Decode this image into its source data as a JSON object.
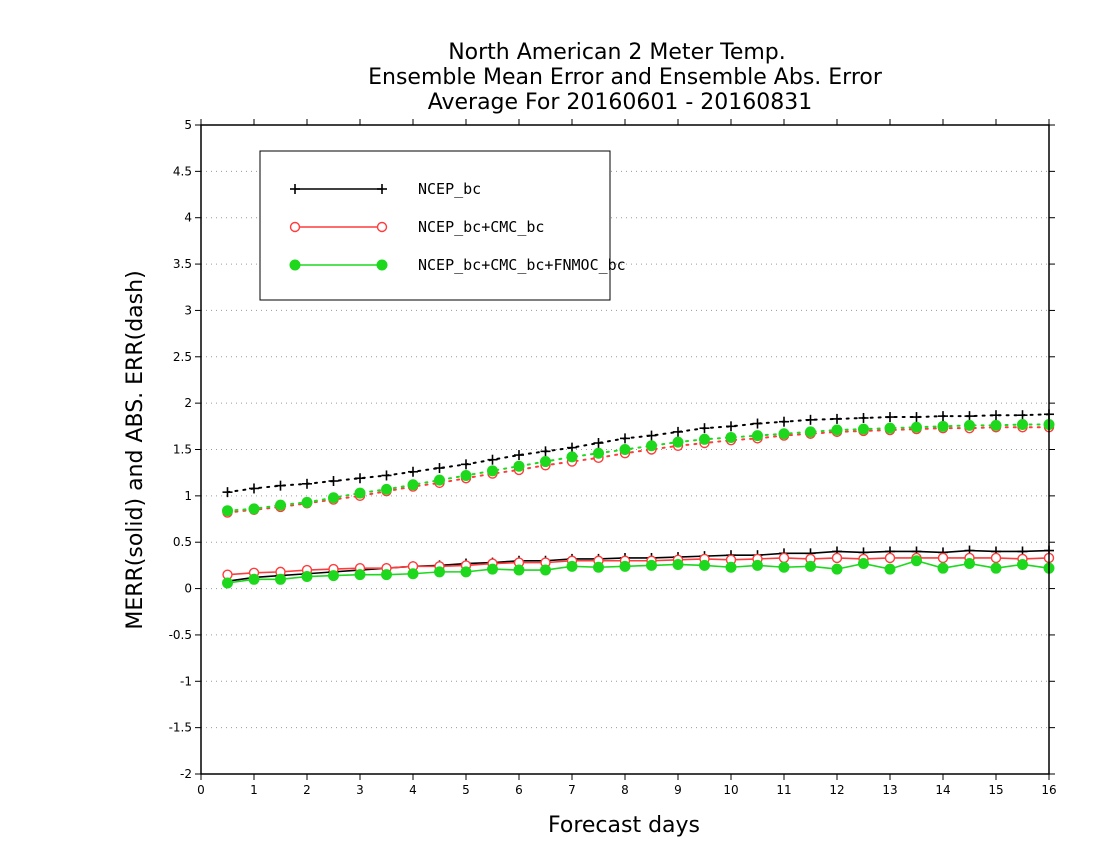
{
  "chart_data": {
    "type": "line",
    "title": [
      "North American 2 Meter Temp.",
      "Ensemble Mean Error and Ensemble Abs. Error",
      "Average For 20160601 - 20160831"
    ],
    "xlabel": "Forecast days",
    "ylabel": "MERR(solid) and ABS. ERR(dash)",
    "xlim": [
      0,
      16
    ],
    "ylim": [
      -2,
      5
    ],
    "xticks": [
      0,
      1,
      2,
      3,
      4,
      5,
      6,
      7,
      8,
      9,
      10,
      11,
      12,
      13,
      14,
      15,
      16
    ],
    "yticks": [
      -2,
      -1.5,
      -1,
      -0.5,
      0,
      0.5,
      1,
      1.5,
      2,
      2.5,
      3,
      3.5,
      4,
      4.5,
      5
    ],
    "ytick_labels": [
      "-2",
      "-1.5",
      "-1",
      "-0.5",
      "0",
      "0.5",
      "1",
      "1.5",
      "2",
      "2.5",
      "3",
      "3.5",
      "4",
      "4.5",
      "5"
    ],
    "grid": "horizontal dotted",
    "legend_position": "top-left",
    "x": [
      0.5,
      1,
      1.5,
      2,
      2.5,
      3,
      3.5,
      4,
      4.5,
      5,
      5.5,
      6,
      6.5,
      7,
      7.5,
      8,
      8.5,
      9,
      9.5,
      10,
      10.5,
      11,
      11.5,
      12,
      12.5,
      13,
      13.5,
      14,
      14.5,
      15,
      15.5,
      16
    ],
    "series": [
      {
        "name": "NCEP_bc",
        "color": "#000000",
        "marker": "plus",
        "solid": [
          0.08,
          0.12,
          0.14,
          0.16,
          0.18,
          0.2,
          0.22,
          0.24,
          0.25,
          0.27,
          0.28,
          0.3,
          0.3,
          0.32,
          0.32,
          0.33,
          0.33,
          0.34,
          0.35,
          0.36,
          0.36,
          0.38,
          0.38,
          0.4,
          0.39,
          0.4,
          0.4,
          0.39,
          0.41,
          0.4,
          0.4,
          0.41
        ],
        "dash": [
          1.04,
          1.08,
          1.11,
          1.13,
          1.16,
          1.19,
          1.22,
          1.26,
          1.3,
          1.34,
          1.39,
          1.44,
          1.48,
          1.52,
          1.57,
          1.62,
          1.65,
          1.69,
          1.73,
          1.75,
          1.78,
          1.8,
          1.82,
          1.83,
          1.84,
          1.85,
          1.85,
          1.86,
          1.86,
          1.87,
          1.87,
          1.88
        ]
      },
      {
        "name": "NCEP_bc+CMC_bc",
        "color": "#ff3b3b",
        "marker": "open-circle",
        "solid": [
          0.15,
          0.17,
          0.18,
          0.2,
          0.21,
          0.22,
          0.22,
          0.24,
          0.24,
          0.25,
          0.27,
          0.28,
          0.28,
          0.3,
          0.3,
          0.3,
          0.3,
          0.31,
          0.32,
          0.31,
          0.32,
          0.33,
          0.32,
          0.33,
          0.32,
          0.33,
          0.33,
          0.33,
          0.33,
          0.33,
          0.32,
          0.33
        ],
        "dash": [
          0.82,
          0.85,
          0.88,
          0.92,
          0.96,
          1.0,
          1.05,
          1.1,
          1.14,
          1.19,
          1.24,
          1.28,
          1.33,
          1.37,
          1.41,
          1.46,
          1.5,
          1.54,
          1.57,
          1.6,
          1.62,
          1.65,
          1.67,
          1.69,
          1.7,
          1.71,
          1.72,
          1.73,
          1.73,
          1.74,
          1.74,
          1.74
        ]
      },
      {
        "name": "NCEP_bc+CMC_bc+FNMOC_bc",
        "color": "#1ed81e",
        "marker": "filled-circle",
        "solid": [
          0.06,
          0.1,
          0.1,
          0.13,
          0.14,
          0.15,
          0.15,
          0.16,
          0.18,
          0.18,
          0.21,
          0.2,
          0.2,
          0.24,
          0.23,
          0.24,
          0.25,
          0.26,
          0.25,
          0.23,
          0.25,
          0.23,
          0.24,
          0.21,
          0.27,
          0.21,
          0.3,
          0.22,
          0.27,
          0.22,
          0.26,
          0.22
        ],
        "dash": [
          0.84,
          0.86,
          0.9,
          0.93,
          0.98,
          1.03,
          1.07,
          1.12,
          1.17,
          1.22,
          1.27,
          1.32,
          1.37,
          1.42,
          1.46,
          1.5,
          1.54,
          1.58,
          1.61,
          1.63,
          1.65,
          1.67,
          1.69,
          1.71,
          1.72,
          1.73,
          1.74,
          1.75,
          1.76,
          1.76,
          1.77,
          1.77
        ]
      }
    ]
  }
}
